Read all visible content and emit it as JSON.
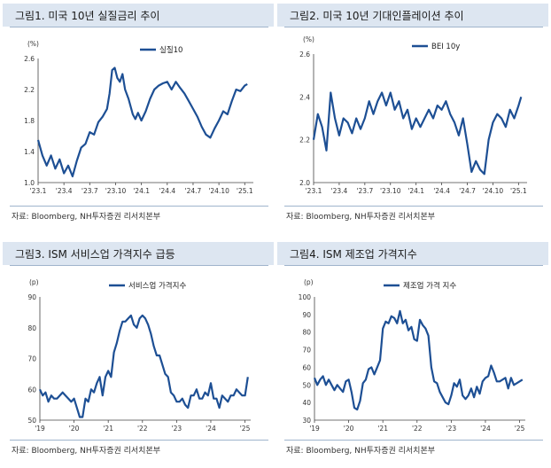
{
  "source_note": "자료: Bloomberg, NH투자증권 리서치본부",
  "colors": {
    "line": "#1d4f94",
    "title_bg": "#dde6f1"
  },
  "chart_data": [
    {
      "id": "c1",
      "type": "line",
      "title": "그림1. 미국 10년 실질금리 추이",
      "unit": "(%)",
      "series": [
        {
          "name": "실질10"
        }
      ],
      "legend_position": "top-right",
      "ylim": [
        1.0,
        2.6
      ],
      "yticks": [
        "1.0",
        "1.4",
        "1.8",
        "2.2",
        "2.6"
      ],
      "xlim": [
        0,
        25
      ],
      "xtick_labels": [
        "'23.1",
        "'23.4",
        "'23.7",
        "'23.10",
        "'24.1",
        "'24.4",
        "'24.7",
        "'24.10",
        "'25.1"
      ],
      "xtick_pos": [
        0,
        3,
        6,
        9,
        12,
        15,
        18,
        21,
        24
      ],
      "x": [
        0,
        0.5,
        1,
        1.5,
        2,
        2.5,
        3,
        3.5,
        4,
        4.5,
        5,
        5.5,
        6,
        6.5,
        7,
        7.5,
        8,
        8.3,
        8.6,
        8.9,
        9.2,
        9.5,
        9.8,
        10.1,
        10.5,
        11,
        11.3,
        11.6,
        12,
        12.5,
        13,
        13.5,
        14,
        14.5,
        15,
        15.5,
        16,
        16.5,
        17,
        17.5,
        18,
        18.5,
        19,
        19.5,
        20,
        20.5,
        21,
        21.5,
        22,
        22.5,
        23,
        23.5,
        24,
        24.3
      ],
      "y": [
        1.55,
        1.35,
        1.22,
        1.35,
        1.18,
        1.3,
        1.12,
        1.22,
        1.08,
        1.28,
        1.45,
        1.5,
        1.65,
        1.62,
        1.78,
        1.85,
        1.95,
        2.15,
        2.45,
        2.48,
        2.35,
        2.3,
        2.4,
        2.2,
        2.08,
        1.88,
        1.82,
        1.9,
        1.8,
        1.92,
        2.08,
        2.2,
        2.25,
        2.28,
        2.3,
        2.2,
        2.3,
        2.22,
        2.15,
        2.05,
        1.95,
        1.85,
        1.72,
        1.62,
        1.58,
        1.7,
        1.8,
        1.92,
        1.88,
        2.05,
        2.2,
        2.18,
        2.25,
        2.27
      ]
    },
    {
      "id": "c2",
      "type": "line",
      "title": "그림2. 미국 10년 기대인플레이션 추이",
      "unit": "(%)",
      "series": [
        {
          "name": "BEI 10y"
        }
      ],
      "legend_position": "top",
      "ylim": [
        2.0,
        2.6
      ],
      "yticks": [
        "2.0",
        "2.2",
        "2.4",
        "2.6"
      ],
      "xlim": [
        0,
        25
      ],
      "xtick_labels": [
        "'23.1",
        "'23.4",
        "'23.7",
        "'23.10",
        "'24.1",
        "'24.4",
        "'24.7",
        "'24.10",
        "'25.1"
      ],
      "xtick_pos": [
        0,
        3,
        6,
        9,
        12,
        15,
        18,
        21,
        24
      ],
      "x": [
        0,
        0.5,
        1,
        1.5,
        2,
        2.5,
        3,
        3.5,
        4,
        4.5,
        5,
        5.5,
        6,
        6.5,
        7,
        7.5,
        8,
        8.5,
        9,
        9.5,
        10,
        10.5,
        11,
        11.5,
        12,
        12.5,
        13,
        13.5,
        14,
        14.5,
        15,
        15.5,
        16,
        16.5,
        17,
        17.5,
        18,
        18.5,
        19,
        19.5,
        20,
        20.5,
        21,
        21.5,
        22,
        22.5,
        23,
        23.5,
        24,
        24.3
      ],
      "y": [
        2.2,
        2.32,
        2.26,
        2.15,
        2.42,
        2.3,
        2.22,
        2.3,
        2.28,
        2.23,
        2.3,
        2.25,
        2.3,
        2.38,
        2.32,
        2.38,
        2.42,
        2.36,
        2.42,
        2.34,
        2.38,
        2.3,
        2.34,
        2.25,
        2.3,
        2.26,
        2.3,
        2.34,
        2.3,
        2.36,
        2.34,
        2.38,
        2.32,
        2.28,
        2.22,
        2.3,
        2.18,
        2.05,
        2.1,
        2.06,
        2.04,
        2.2,
        2.28,
        2.32,
        2.3,
        2.26,
        2.34,
        2.3,
        2.36,
        2.4
      ]
    },
    {
      "id": "c3",
      "type": "line",
      "title": "그림3. ISM 서비스업 가격지수 급등",
      "unit": "(p)",
      "series": [
        {
          "name": "서비스업 가격지수"
        }
      ],
      "legend_position": "top",
      "ylim": [
        50,
        90
      ],
      "yticks": [
        "50",
        "60",
        "70",
        "80",
        "90"
      ],
      "xlim": [
        0,
        74
      ],
      "xtick_labels": [
        "'19",
        "'20",
        "'21",
        "'22",
        "'23",
        "'24",
        "'25"
      ],
      "xtick_pos": [
        0,
        12,
        24,
        36,
        48,
        60,
        72
      ],
      "x": [
        0,
        1,
        2,
        3,
        4,
        5,
        6,
        7,
        8,
        9,
        10,
        11,
        12,
        13,
        14,
        15,
        16,
        17,
        18,
        19,
        20,
        21,
        22,
        23,
        24,
        25,
        26,
        27,
        28,
        29,
        30,
        31,
        32,
        33,
        34,
        35,
        36,
        37,
        38,
        39,
        40,
        41,
        42,
        43,
        44,
        45,
        46,
        47,
        48,
        49,
        50,
        51,
        52,
        53,
        54,
        55,
        56,
        57,
        58,
        59,
        60,
        61,
        62,
        63,
        64,
        65,
        66,
        67,
        68,
        69,
        70,
        71,
        72,
        73
      ],
      "y": [
        60,
        58,
        59,
        56,
        58,
        57,
        57,
        58,
        59,
        58,
        57,
        56,
        57,
        54,
        51,
        51,
        57,
        56,
        60,
        59,
        62,
        64,
        58,
        64,
        66,
        64,
        72,
        75,
        79,
        82,
        82,
        83,
        84,
        81,
        80,
        83,
        84,
        83,
        81,
        78,
        74,
        71,
        71,
        68,
        65,
        64,
        59,
        58,
        56,
        56,
        57,
        55,
        54,
        58,
        58,
        60,
        57,
        57,
        59,
        58,
        62,
        57,
        57,
        54,
        58,
        57,
        56,
        58,
        58,
        60,
        59,
        58,
        58,
        64
      ]
    },
    {
      "id": "c4",
      "type": "line",
      "title": "그림4. ISM 제조업 가격지수",
      "unit": "(p)",
      "series": [
        {
          "name": "제조업 가격 지수"
        }
      ],
      "legend_position": "top",
      "ylim": [
        30,
        100
      ],
      "yticks": [
        "30",
        "40",
        "50",
        "60",
        "70",
        "80",
        "90",
        "100"
      ],
      "xlim": [
        0,
        74
      ],
      "xtick_labels": [
        "'19",
        "'20",
        "'21",
        "'22",
        "'23",
        "'24",
        "'25"
      ],
      "xtick_pos": [
        0,
        12,
        24,
        36,
        48,
        60,
        72
      ],
      "x": [
        0,
        1,
        2,
        3,
        4,
        5,
        6,
        7,
        8,
        9,
        10,
        11,
        12,
        13,
        14,
        15,
        16,
        17,
        18,
        19,
        20,
        21,
        22,
        23,
        24,
        25,
        26,
        27,
        28,
        29,
        30,
        31,
        32,
        33,
        34,
        35,
        36,
        37,
        38,
        39,
        40,
        41,
        42,
        43,
        44,
        45,
        46,
        47,
        48,
        49,
        50,
        51,
        52,
        53,
        54,
        55,
        56,
        57,
        58,
        59,
        60,
        61,
        62,
        63,
        64,
        65,
        66,
        67,
        68,
        69,
        70,
        71,
        72,
        73
      ],
      "y": [
        54,
        50,
        53,
        55,
        50,
        53,
        50,
        47,
        50,
        48,
        46,
        52,
        53,
        46,
        37,
        36,
        41,
        51,
        53,
        59,
        60,
        56,
        60,
        64,
        82,
        86,
        85,
        89,
        88,
        85,
        92,
        85,
        87,
        81,
        83,
        76,
        75,
        87,
        84,
        82,
        78,
        60,
        52,
        51,
        46,
        43,
        40,
        39,
        44,
        51,
        49,
        53,
        44,
        42,
        44,
        48,
        43,
        49,
        45,
        52,
        54,
        55,
        61,
        57,
        52,
        52,
        53,
        54,
        48,
        54,
        50,
        51,
        52,
        53
      ]
    }
  ]
}
